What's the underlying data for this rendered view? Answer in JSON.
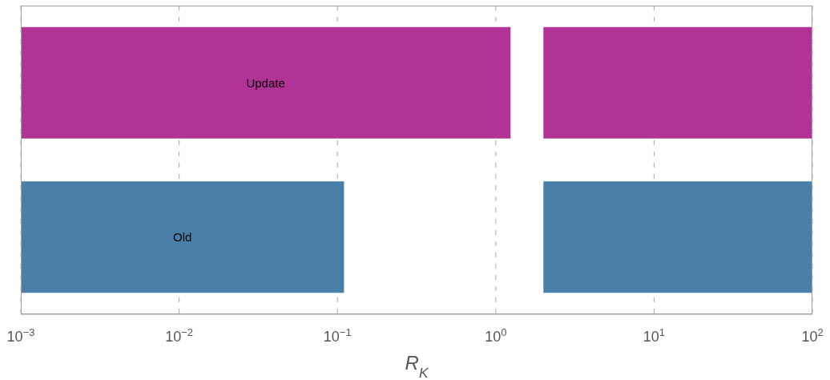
{
  "chart_data": {
    "type": "bar",
    "orientation": "horizontal",
    "categories": [
      "Update",
      "Old"
    ],
    "series": [
      {
        "colors": [
          "#b23396",
          "#4a80a7"
        ],
        "values": [
          1.239,
          0.109
        ],
        "base": [
          0.001,
          0.001
        ]
      },
      {
        "colors": [
          "#b23396",
          "#4a80a7"
        ],
        "values": [
          98,
          98
        ],
        "base": [
          2,
          2
        ]
      }
    ],
    "xlabel": "R$_{K}$",
    "log": "x",
    "xlim": [
      0.001,
      100
    ],
    "xticks": [
      {
        "value": 0.001,
        "label": "10$^{−3}$"
      },
      {
        "value": 0.01,
        "label": "10$^{−2}$"
      },
      {
        "value": 0.1,
        "label": "10$^{−1}$"
      },
      {
        "value": 1,
        "label": "10$^{0}$"
      },
      {
        "value": 10,
        "label": "10$^{1}$"
      },
      {
        "value": 100,
        "label": "10$^{2}$"
      }
    ],
    "grid": "x"
  }
}
